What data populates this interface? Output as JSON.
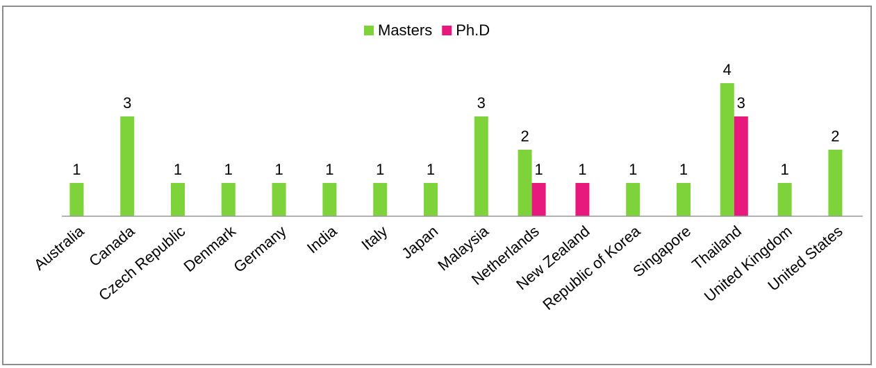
{
  "chart_data": {
    "type": "bar",
    "categories": [
      "Australia",
      "Canada",
      "Czech Republic",
      "Denmark",
      "Germany",
      "India",
      "Italy",
      "Japan",
      "Malaysia",
      "Netherlands",
      "New Zealand",
      "Republic of Korea",
      "Singapore",
      "Thailand",
      "United Kingdom",
      "United States"
    ],
    "series": [
      {
        "name": "Masters",
        "color": "#7ed23a",
        "values": [
          1,
          3,
          1,
          1,
          1,
          1,
          1,
          1,
          3,
          2,
          null,
          1,
          1,
          4,
          1,
          2
        ]
      },
      {
        "name": "Ph.D",
        "color": "#e8197d",
        "values": [
          null,
          null,
          null,
          null,
          null,
          null,
          null,
          null,
          null,
          1,
          1,
          null,
          null,
          3,
          null,
          null
        ]
      }
    ],
    "legend": "top-center",
    "grid": false,
    "ylim": [
      0,
      4
    ]
  }
}
